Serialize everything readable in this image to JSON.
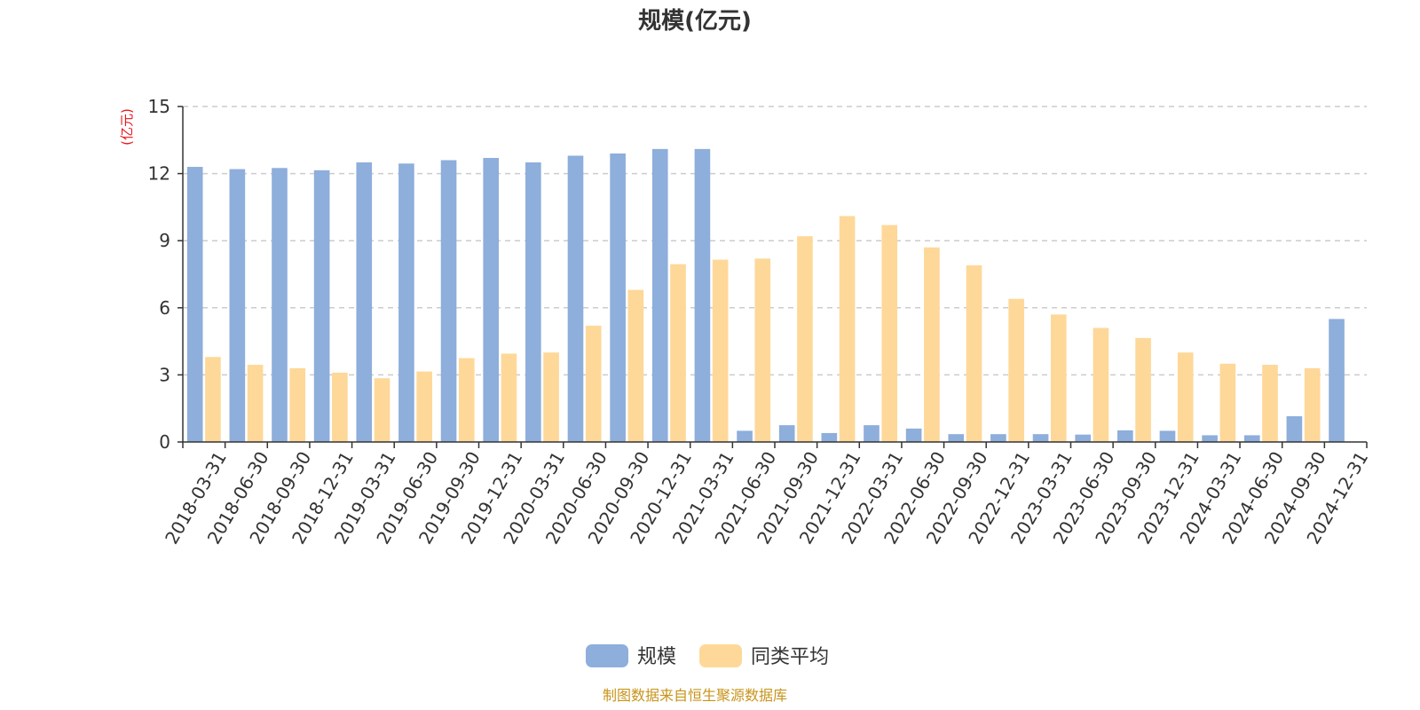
{
  "chart_data": {
    "type": "bar",
    "title": "规模(亿元)",
    "ylabel": "(亿元)",
    "xlabel": "",
    "ylim": [
      0,
      15
    ],
    "yticks": [
      0,
      3,
      6,
      9,
      12,
      15
    ],
    "grid": true,
    "legend_position": "bottom-center",
    "categories": [
      "2018-03-31",
      "2018-06-30",
      "2018-09-30",
      "2018-12-31",
      "2019-03-31",
      "2019-06-30",
      "2019-09-30",
      "2019-12-31",
      "2020-03-31",
      "2020-06-30",
      "2020-09-30",
      "2020-12-31",
      "2021-03-31",
      "2021-06-30",
      "2021-09-30",
      "2021-12-31",
      "2022-03-31",
      "2022-06-30",
      "2022-09-30",
      "2022-12-31",
      "2023-03-31",
      "2023-06-30",
      "2023-09-30",
      "2023-12-31",
      "2024-03-31",
      "2024-06-30",
      "2024-09-30",
      "2024-12-31"
    ],
    "series": [
      {
        "name": "规模",
        "color": "#8eaedb",
        "values": [
          12.3,
          12.2,
          12.25,
          12.15,
          12.5,
          12.45,
          12.6,
          12.7,
          12.5,
          12.8,
          12.9,
          13.1,
          13.1,
          0.5,
          0.75,
          0.4,
          0.75,
          0.6,
          0.35,
          0.35,
          0.35,
          0.33,
          0.52,
          0.5,
          0.3,
          0.3,
          1.15,
          5.5
        ]
      },
      {
        "name": "同类平均",
        "color": "#fed899",
        "values": [
          3.8,
          3.45,
          3.3,
          3.1,
          2.85,
          3.15,
          3.75,
          3.95,
          4.0,
          5.2,
          6.8,
          7.95,
          8.15,
          8.2,
          9.2,
          10.1,
          9.7,
          8.7,
          7.9,
          6.4,
          5.7,
          5.1,
          4.65,
          4.0,
          3.5,
          3.45,
          3.3,
          null
        ]
      }
    ]
  },
  "footer": {
    "source": "制图数据来自恒生聚源数据库"
  }
}
